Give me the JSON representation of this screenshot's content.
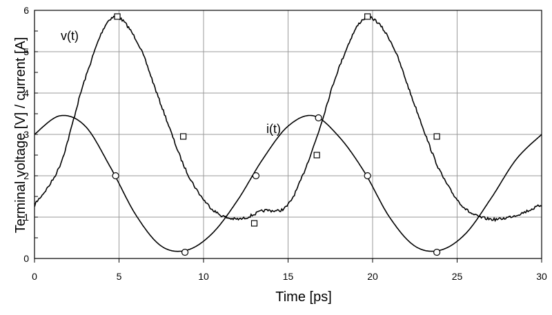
{
  "chart_data": {
    "type": "line",
    "xlabel": "Time  [ps]",
    "ylabel": "Terminal voltage [V]  /  current [A]",
    "xlim": [
      0,
      30
    ],
    "ylim": [
      0,
      6
    ],
    "x_ticks": [
      "0",
      "5",
      "10",
      "15",
      "20",
      "25",
      "30"
    ],
    "y_ticks": [
      "0",
      "1",
      "2",
      "3",
      "4",
      "5",
      "6"
    ],
    "grid": true,
    "legend": "none",
    "series": [
      {
        "name": "v(t)",
        "marker": "square",
        "color": "#000000",
        "x": [
          0,
          1.5,
          3.0,
          4.5,
          6.0,
          7.5,
          9.0,
          10.5,
          12.0,
          13.5,
          15.0,
          16.5,
          18.0,
          19.5,
          21.0,
          22.5,
          24.0,
          25.5,
          27.0,
          28.5,
          30.0
        ],
        "values": [
          1.3,
          2.25,
          4.35,
          5.8,
          5.3,
          3.7,
          2.1,
          1.2,
          0.95,
          1.15,
          1.3,
          2.7,
          4.6,
          5.8,
          5.3,
          3.7,
          2.1,
          1.2,
          0.95,
          1.05,
          1.3
        ],
        "markers_x": [
          4.9,
          8.8,
          13.0,
          16.7,
          19.7,
          23.8
        ],
        "markers_y": [
          5.85,
          2.95,
          0.85,
          2.5,
          5.85,
          2.95
        ]
      },
      {
        "name": "i(t)",
        "marker": "circle",
        "color": "#000000",
        "x": [
          0,
          1.5,
          3.0,
          4.5,
          6.0,
          7.5,
          9.0,
          10.5,
          12.0,
          13.5,
          15.0,
          16.5,
          18.0,
          19.5,
          21.0,
          22.5,
          24.0,
          25.5,
          27.0,
          28.5,
          30.0
        ],
        "values": [
          3.0,
          3.45,
          3.2,
          2.2,
          1.05,
          0.3,
          0.2,
          0.6,
          1.4,
          2.4,
          3.2,
          3.45,
          2.95,
          2.1,
          1.0,
          0.3,
          0.2,
          0.6,
          1.45,
          2.4,
          3.0
        ],
        "markers_x": [
          4.8,
          8.9,
          13.1,
          16.8,
          19.7,
          23.8
        ],
        "markers_y": [
          2.0,
          0.15,
          2.0,
          3.4,
          2.0,
          0.15
        ]
      }
    ]
  }
}
